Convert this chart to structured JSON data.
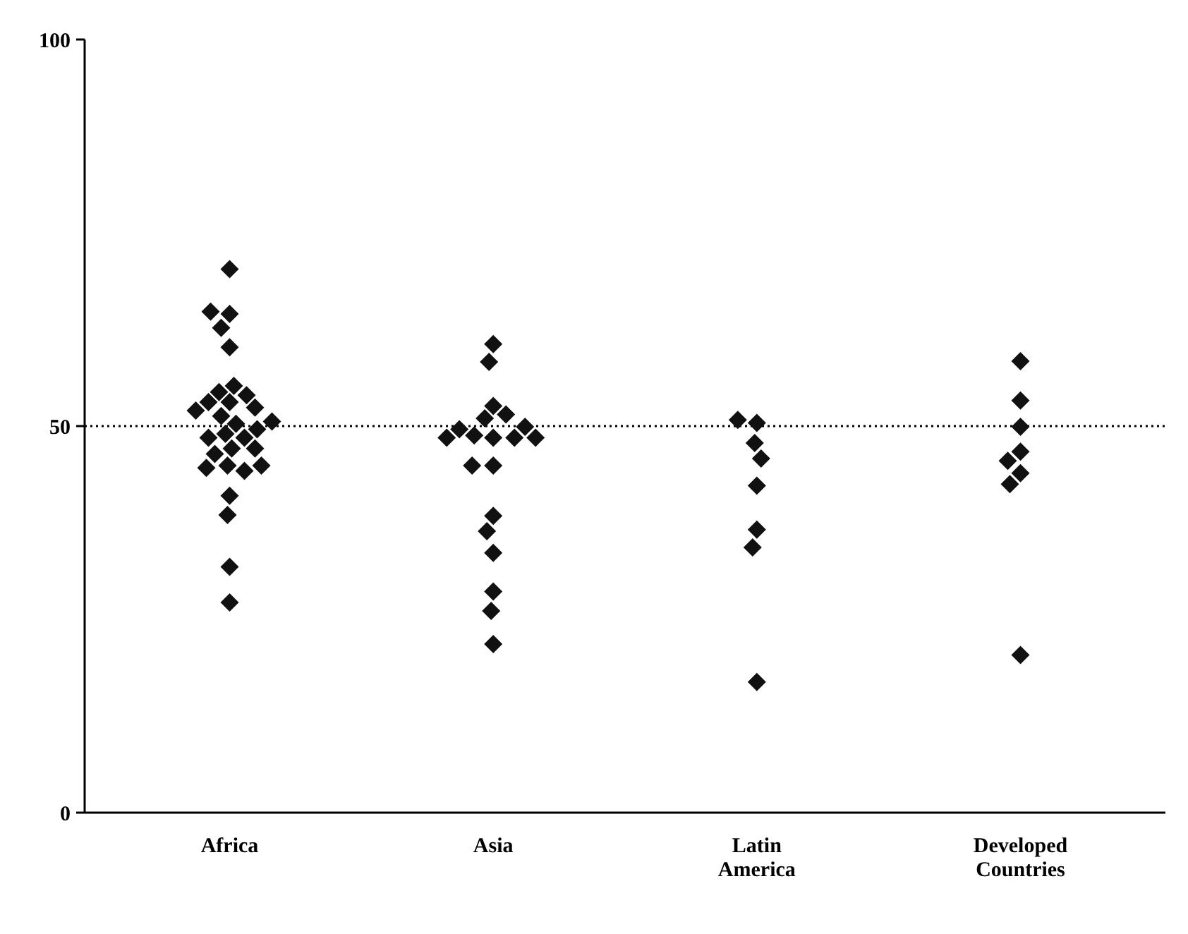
{
  "chart_data": {
    "type": "scatter",
    "categories": [
      "Africa",
      "Asia",
      "Latin\nAmerica",
      "Developed\nCountries"
    ],
    "ylim": [
      0,
      100
    ],
    "yticks": [
      0,
      50,
      100
    ],
    "grid": false,
    "marker": "diamond",
    "ref_lines": [
      {
        "axis": "y",
        "value": 50,
        "line_style": "dotted",
        "color": "#000000"
      }
    ],
    "series": [
      {
        "color": "#111111",
        "x": [
          "Africa",
          "Africa",
          "Africa",
          "Africa",
          "Africa",
          "Africa",
          "Africa",
          "Africa",
          "Africa",
          "Africa",
          "Africa",
          "Africa",
          "Africa",
          "Africa",
          "Africa",
          "Africa",
          "Africa",
          "Africa",
          "Africa",
          "Africa",
          "Africa",
          "Africa",
          "Africa",
          "Africa",
          "Africa",
          "Africa",
          "Africa",
          "Africa",
          "Africa",
          "Africa",
          "Asia",
          "Asia",
          "Asia",
          "Asia",
          "Asia",
          "Asia",
          "Asia",
          "Asia",
          "Asia",
          "Asia",
          "Asia",
          "Asia",
          "Asia",
          "Asia",
          "Asia",
          "Asia",
          "Asia",
          "Asia",
          "Asia",
          "Asia",
          "Latin\nAmerica",
          "Latin\nAmerica",
          "Latin\nAmerica",
          "Latin\nAmerica",
          "Latin\nAmerica",
          "Latin\nAmerica",
          "Latin\nAmerica",
          "Latin\nAmerica",
          "Developed\nCountries",
          "Developed\nCountries",
          "Developed\nCountries",
          "Developed\nCountries",
          "Developed\nCountries",
          "Developed\nCountries",
          "Developed\nCountries",
          "Developed\nCountries"
        ],
        "values": [
          70.3,
          64.5,
          64.8,
          62.7,
          60.2,
          53.1,
          54.4,
          55.2,
          54.0,
          53.1,
          52.4,
          52.0,
          51.3,
          50.3,
          49.0,
          48.5,
          48.5,
          47.1,
          47.1,
          46.4,
          44.9,
          44.2,
          44.6,
          44.9,
          41.0,
          38.5,
          31.8,
          27.2,
          49.6,
          50.6,
          60.6,
          58.3,
          52.6,
          51.0,
          48.5,
          48.8,
          51.5,
          48.5,
          49.6,
          49.9,
          48.5,
          48.5,
          44.9,
          44.9,
          38.4,
          36.4,
          33.6,
          28.6,
          26.1,
          21.8,
          50.4,
          50.8,
          47.8,
          45.8,
          42.3,
          36.6,
          34.3,
          16.9,
          58.4,
          53.3,
          49.9,
          46.7,
          45.5,
          43.9,
          42.5,
          20.4
        ]
      }
    ]
  }
}
